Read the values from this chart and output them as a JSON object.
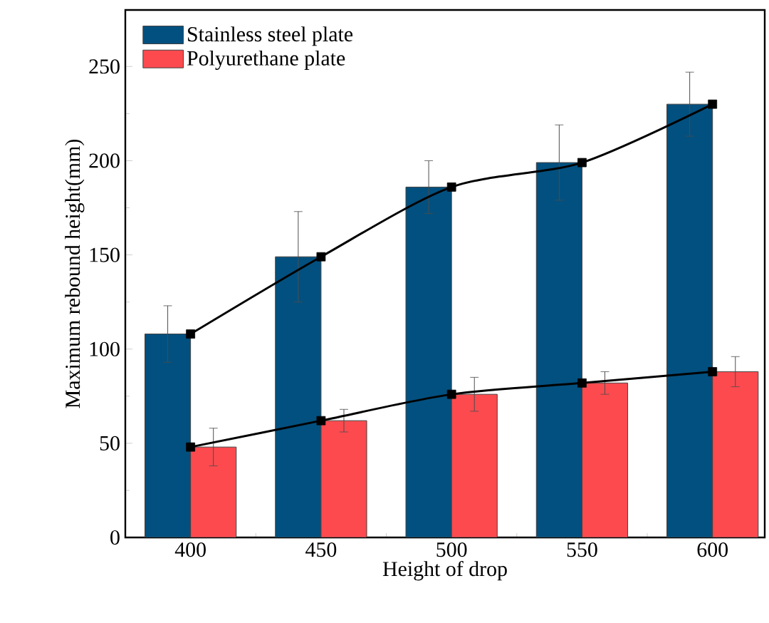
{
  "chart_data": {
    "type": "bar",
    "xlabel": "Height of drop",
    "ylabel": "Maximum rebound height(mm)",
    "categories": [
      "400",
      "450",
      "500",
      "550",
      "600"
    ],
    "series": [
      {
        "name": "Stainless steel plate",
        "color": "#02507f",
        "values": [
          108,
          149,
          186,
          199,
          230
        ],
        "errors": [
          15,
          24,
          14,
          20,
          17
        ]
      },
      {
        "name": "Polyurethane plate",
        "color": "#fc4a4f",
        "values": [
          48,
          62,
          76,
          82,
          88
        ],
        "errors": [
          10,
          6,
          9,
          6,
          8
        ]
      },
      {
        "type": "line",
        "color": "#000000",
        "marker": "square",
        "values": [
          108,
          149,
          186,
          199,
          230
        ]
      },
      {
        "type": "line",
        "color": "#000000",
        "marker": "square",
        "values": [
          48,
          62,
          76,
          82,
          88
        ]
      }
    ],
    "ylim": [
      0,
      280
    ],
    "yticks": [
      0,
      50,
      100,
      150,
      200,
      250
    ],
    "legend": "top left",
    "grid": false
  }
}
